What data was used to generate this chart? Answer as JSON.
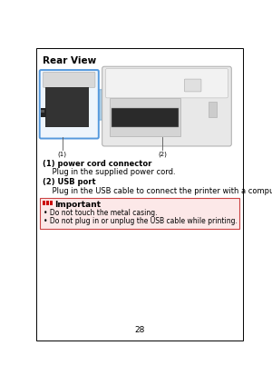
{
  "page_bg": "#ffffff",
  "border_color": "#000000",
  "title": "Rear View",
  "section1_label": "(1) power cord connector",
  "section1_text": "    Plug in the supplied power cord.",
  "section2_label": "(2) USB port",
  "section2_text": "    Plug in the USB cable to connect the printer with a computer.",
  "important_icon_color": "#cc0000",
  "important_label": "Important",
  "important_box_bg": "#fce8e8",
  "important_box_border": "#cc4444",
  "bullet1": "• Do not touch the metal casing.",
  "bullet2": "• Do not plug in or unplug the USB cable while printing.",
  "label1": "(1)",
  "label2": "(2)",
  "page_number": "28",
  "zoom_box_color": "#5599dd",
  "blue_beam_color": "#7ab0d8",
  "printer_body_color": "#e8e8e8",
  "printer_edge_color": "#aaaaaa",
  "dark_block_color": "#333333",
  "connector_color": "#222222"
}
